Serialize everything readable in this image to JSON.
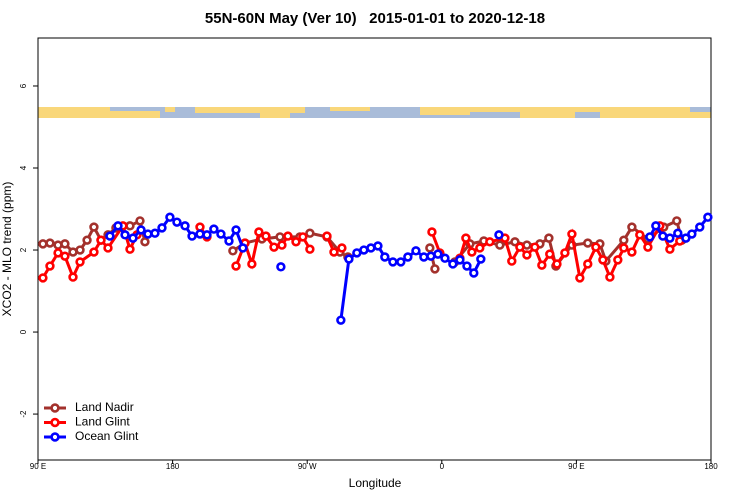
{
  "chart_data": {
    "type": "line",
    "title": "55N-60N May (Ver 10)   2015-01-01 to 2020-12-18",
    "x_label": "Longitude",
    "y_label": "XCO2 - MLO trend (ppm)",
    "xlim": [
      90,
      540
    ],
    "xticks": [
      {
        "value": 90,
        "label": "90 E"
      },
      {
        "value": 180,
        "label": "180"
      },
      {
        "value": 270,
        "label": "90 W"
      },
      {
        "value": 360,
        "label": "0"
      },
      {
        "value": 450,
        "label": "90 E"
      },
      {
        "value": 540,
        "label": "180"
      }
    ],
    "ylim": [
      -3.12,
      7.17
    ],
    "yticks": [
      -2,
      0,
      2,
      4,
      6
    ],
    "grid": false,
    "legend": "bottom-left",
    "series": [
      {
        "name": "Land Nadir",
        "color": "#a3312c",
        "x": [
          93.3,
          98.0,
          103.4,
          108.0,
          113.4,
          118.1,
          122.8,
          127.4,
          132.1,
          136.8,
          142.1,
          151.5,
          158.2,
          161.5,
          null,
          220.3,
          228.4,
          239.7,
          251.8,
          265.1,
          271.8,
          283.2,
          291.9,
          297.2,
          null,
          352.0,
          355.4,
          null,
          368.7,
          378.8,
          388.1,
          398.8,
          408.9,
          416.9,
          425.6,
          431.6,
          436.3,
          447.0,
          457.6,
          465.7,
          469.7,
          481.7,
          487.1,
          497.8,
          508.4,
          517.1,
          520.5
        ],
        "values": [
          2.15,
          2.17,
          2.12,
          2.15,
          1.95,
          2.0,
          2.24,
          2.56,
          2.24,
          2.37,
          2.54,
          2.59,
          2.71,
          2.2,
          null,
          1.98,
          2.17,
          2.27,
          2.32,
          2.32,
          2.41,
          2.32,
          1.95,
          1.83,
          null,
          2.05,
          1.54,
          null,
          1.71,
          2.15,
          2.22,
          2.12,
          2.2,
          2.12,
          2.15,
          2.29,
          1.61,
          2.12,
          2.17,
          2.15,
          1.73,
          2.24,
          2.56,
          2.27,
          2.56,
          2.71,
          2.24
        ]
      },
      {
        "name": "Land Glint",
        "color": "#ff0000",
        "x": [
          93.3,
          98.0,
          103.4,
          108.0,
          113.4,
          118.1,
          127.4,
          132.1,
          136.8,
          146.8,
          151.5,
          156.2,
          null,
          198.3,
          203.0,
          null,
          222.4,
          228.4,
          233.0,
          237.7,
          242.4,
          247.8,
          253.1,
          257.1,
          262.5,
          267.1,
          271.8,
          null,
          283.2,
          287.9,
          293.2,
          null,
          353.4,
          358.7,
          null,
          372.1,
          376.1,
          380.1,
          385.4,
          392.1,
          402.2,
          406.8,
          412.2,
          416.9,
          422.2,
          426.9,
          432.2,
          437.0,
          442.3,
          447.0,
          452.3,
          457.6,
          463.0,
          467.7,
          472.4,
          477.7,
          481.7,
          487.1,
          492.4,
          497.8,
          505.8,
          512.5,
          519.1
        ],
        "values": [
          1.32,
          1.61,
          1.93,
          1.85,
          1.34,
          1.71,
          1.95,
          2.24,
          2.05,
          2.59,
          2.02,
          2.37,
          null,
          2.56,
          2.32,
          null,
          1.61,
          2.17,
          1.66,
          2.44,
          2.34,
          2.07,
          2.12,
          2.34,
          2.2,
          2.32,
          2.02,
          null,
          2.34,
          1.95,
          2.05,
          null,
          2.44,
          1.93,
          null,
          1.8,
          2.29,
          1.95,
          2.05,
          2.2,
          2.29,
          1.73,
          2.07,
          1.88,
          2.07,
          1.63,
          1.9,
          1.66,
          1.93,
          2.39,
          1.32,
          1.66,
          2.07,
          1.76,
          1.34,
          1.76,
          2.05,
          1.95,
          2.37,
          2.07,
          2.59,
          2.02,
          2.22
        ]
      },
      {
        "name": "Ocean Glint",
        "color": "#0000ff",
        "x": [
          138.1,
          143.5,
          148.2,
          153.5,
          158.9,
          163.5,
          168.2,
          172.9,
          178.2,
          182.9,
          188.3,
          193.0,
          198.3,
          203.0,
          207.6,
          212.3,
          217.7,
          222.4,
          227.0,
          null,
          252.4,
          null,
          292.5,
          297.9,
          303.2,
          307.9,
          312.6,
          317.3,
          321.9,
          327.3,
          332.6,
          337.3,
          342.7,
          348.0,
          352.7,
          357.4,
          362.1,
          367.4,
          372.1,
          376.8,
          381.4,
          386.1,
          null,
          398.2,
          null,
          499.1,
          503.1,
          507.8,
          512.5,
          517.8,
          523.2,
          527.2,
          532.5,
          537.9
        ],
        "values": [
          2.34,
          2.59,
          2.37,
          2.29,
          2.49,
          2.39,
          2.41,
          2.54,
          2.8,
          2.68,
          2.59,
          2.34,
          2.39,
          2.37,
          2.51,
          2.39,
          2.22,
          2.49,
          2.05,
          null,
          1.59,
          null,
          0.29,
          1.78,
          1.93,
          2.0,
          2.05,
          2.1,
          1.83,
          1.71,
          1.71,
          1.83,
          1.98,
          1.83,
          1.85,
          1.9,
          1.8,
          1.66,
          1.76,
          1.61,
          1.44,
          1.78,
          null,
          2.37,
          null,
          2.32,
          2.59,
          2.34,
          2.29,
          2.41,
          2.29,
          2.39,
          2.56,
          2.8
        ]
      }
    ]
  }
}
